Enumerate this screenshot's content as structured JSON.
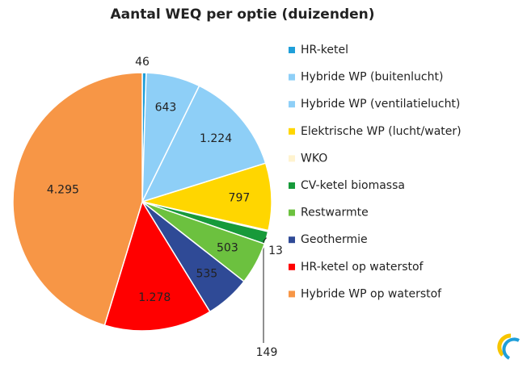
{
  "chart_data": {
    "type": "pie",
    "title": "Aantal WEQ per optie (duizenden)",
    "categories": [
      "HR-ketel",
      "Hybride WP (buitenlucht)",
      "Hybride WP (ventilatielucht)",
      "Elektrische WP (lucht/water)",
      "WKO",
      "CV-ketel biomassa",
      "Restwarmte",
      "Geothermie",
      "HR-ketel op waterstof",
      "Hybride WP op waterstof"
    ],
    "values": [
      46,
      643,
      1224,
      797,
      13,
      149,
      503,
      535,
      1278,
      4295
    ],
    "value_labels": [
      "46",
      "643",
      "1.224",
      "797",
      "13",
      "149",
      "503",
      "535",
      "1.278",
      "4.295"
    ],
    "colors": [
      "#1f9fd9",
      "#8ecff7",
      "#8ecff7",
      "#ffd600",
      "#fff3cf",
      "#179a3a",
      "#6cc13f",
      "#2f4a96",
      "#ff0000",
      "#f79646"
    ],
    "legend": "right"
  }
}
